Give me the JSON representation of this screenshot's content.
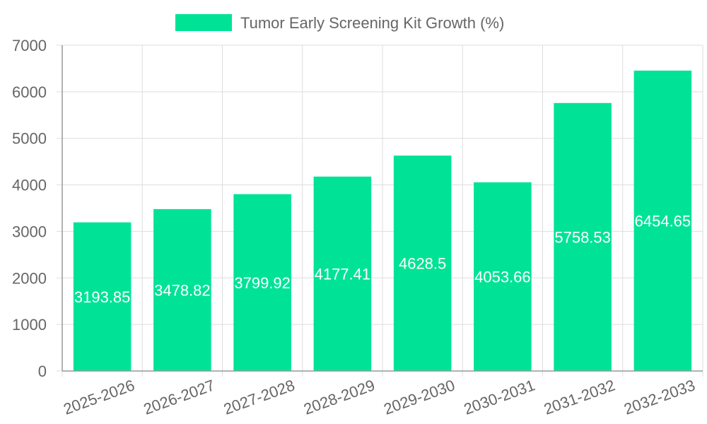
{
  "chart_data": {
    "type": "bar",
    "categories": [
      "2025-2026",
      "2026-2027",
      "2027-2028",
      "2028-2029",
      "2029-2030",
      "2030-2031",
      "2031-2032",
      "2032-2033"
    ],
    "series": [
      {
        "name": "Tumor Early Screening Kit Growth (%)",
        "values": [
          3193.85,
          3478.82,
          3799.92,
          4177.41,
          4628.5,
          4053.66,
          5758.53,
          6454.65
        ],
        "data_labels": [
          "3193.85",
          "3478.82",
          "3799.92",
          "4177.41",
          "4628.5",
          "4053.66",
          "5758.53",
          "6454.65"
        ]
      }
    ],
    "ylim": [
      0,
      7000
    ],
    "y_ticks": [
      0,
      1000,
      2000,
      3000,
      4000,
      5000,
      6000,
      7000
    ],
    "grid": true,
    "legend_position": "top",
    "colors": {
      "bar": "#00e396",
      "grid": "#dddddd",
      "axis": "#999999",
      "text": "#666666",
      "label": "#ffffff"
    }
  }
}
